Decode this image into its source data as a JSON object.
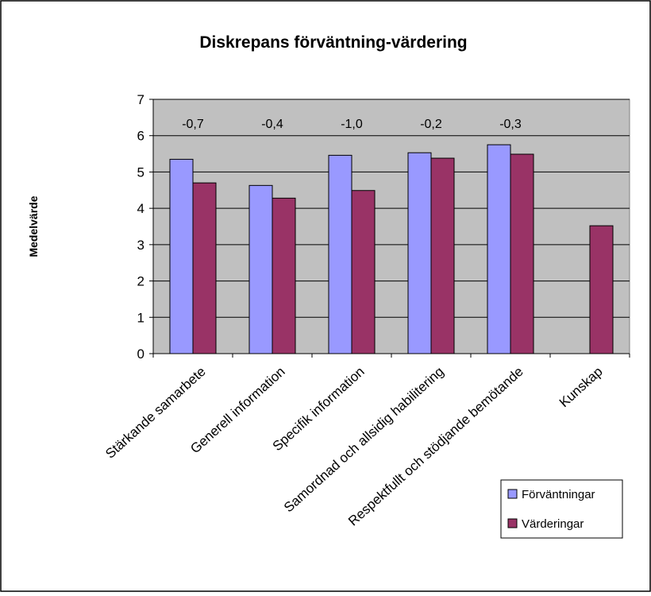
{
  "chart_data": {
    "type": "bar",
    "title": "Diskrepans förväntning-värdering",
    "xlabel": "",
    "ylabel": "Medelvärde",
    "ylim": [
      0,
      7
    ],
    "yticks": [
      0,
      1,
      2,
      3,
      4,
      5,
      6,
      7
    ],
    "grid": true,
    "legend_position": "bottom-right",
    "categories": [
      "Stärkande samarbete",
      "Generell information",
      "Specifik information",
      "Samordnad och allsidig habilitering",
      "Respektfullt och stödjande bemötande",
      "Kunskap"
    ],
    "series": [
      {
        "name": "Förväntningar",
        "color": "#9999ff",
        "values": [
          5.35,
          4.63,
          5.46,
          5.53,
          5.75,
          null
        ]
      },
      {
        "name": "Värderingar",
        "color": "#993366",
        "values": [
          4.7,
          4.28,
          4.49,
          5.38,
          5.49,
          3.52
        ]
      }
    ],
    "annotations": [
      "-0,7",
      "-0,4",
      "-1,0",
      "-0,2",
      "-0,3",
      ""
    ],
    "plot_background": "#c0c0c0"
  }
}
